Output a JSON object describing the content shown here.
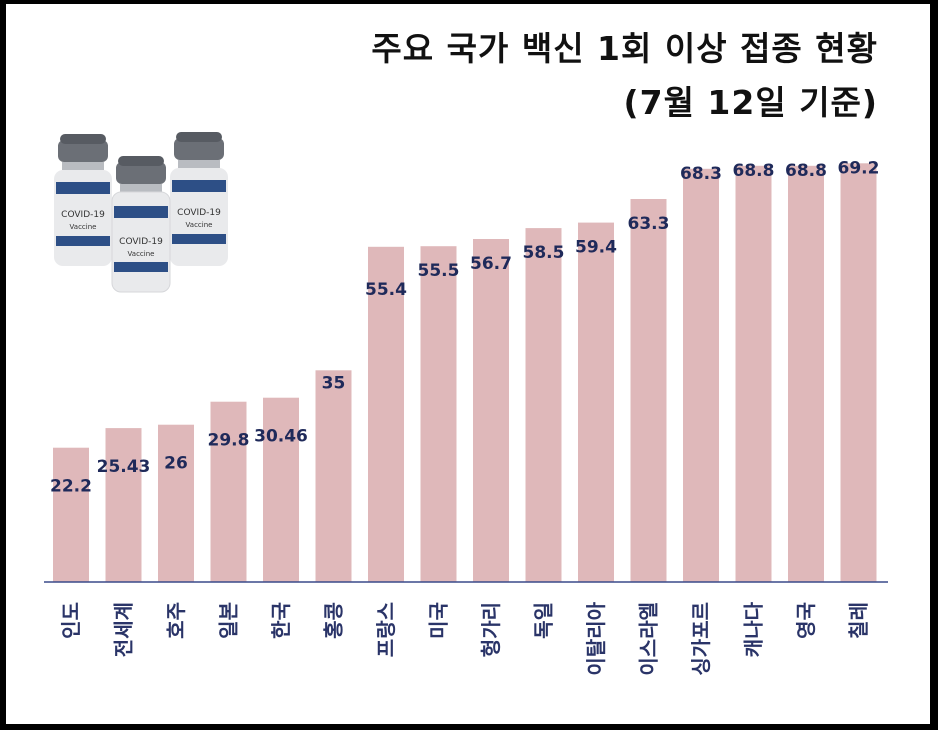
{
  "title": {
    "line1": "주요 국가 백신 1회 이상 접종 현황",
    "line2": "(7월 12일 기준)"
  },
  "vial_label": {
    "name": "COVID-19",
    "sub": "Vaccine"
  },
  "colors": {
    "bar": "#dfb8ba",
    "value_label": "#1f2a5a",
    "category_label": "#2a3468",
    "axis": "#3a4a8a",
    "vial_band": "#2d4f86",
    "vial_cap": "#6b6f76"
  },
  "chart_data": {
    "type": "bar",
    "title": "주요 국가 백신 1회 이상 접종 현황 (7월 12일 기준)",
    "categories": [
      "인도",
      "전세계",
      "호주",
      "일본",
      "한국",
      "홍콩",
      "프랑스",
      "미국",
      "헝가리",
      "독일",
      "이탈리아",
      "이스라엘",
      "싱가포르",
      "캐나다",
      "영국",
      "칠레"
    ],
    "series": [
      {
        "values": [
          22.2,
          25.43,
          26,
          29.8,
          30.46,
          35,
          55.4,
          55.5,
          56.7,
          58.5,
          59.4,
          63.3,
          68.3,
          68.8,
          68.8,
          69.2
        ],
        "labels": [
          "22.2",
          "25.43",
          "26",
          "29.8",
          "30.46",
          "35",
          "55.4",
          "55.5",
          "56.7",
          "58.5",
          "59.4",
          "63.3",
          "68.3",
          "68.8",
          "68.8",
          "69.2"
        ]
      }
    ],
    "xlabel": "",
    "ylabel": "",
    "ylim": [
      0,
      80
    ],
    "grid": false,
    "legend": "none"
  }
}
